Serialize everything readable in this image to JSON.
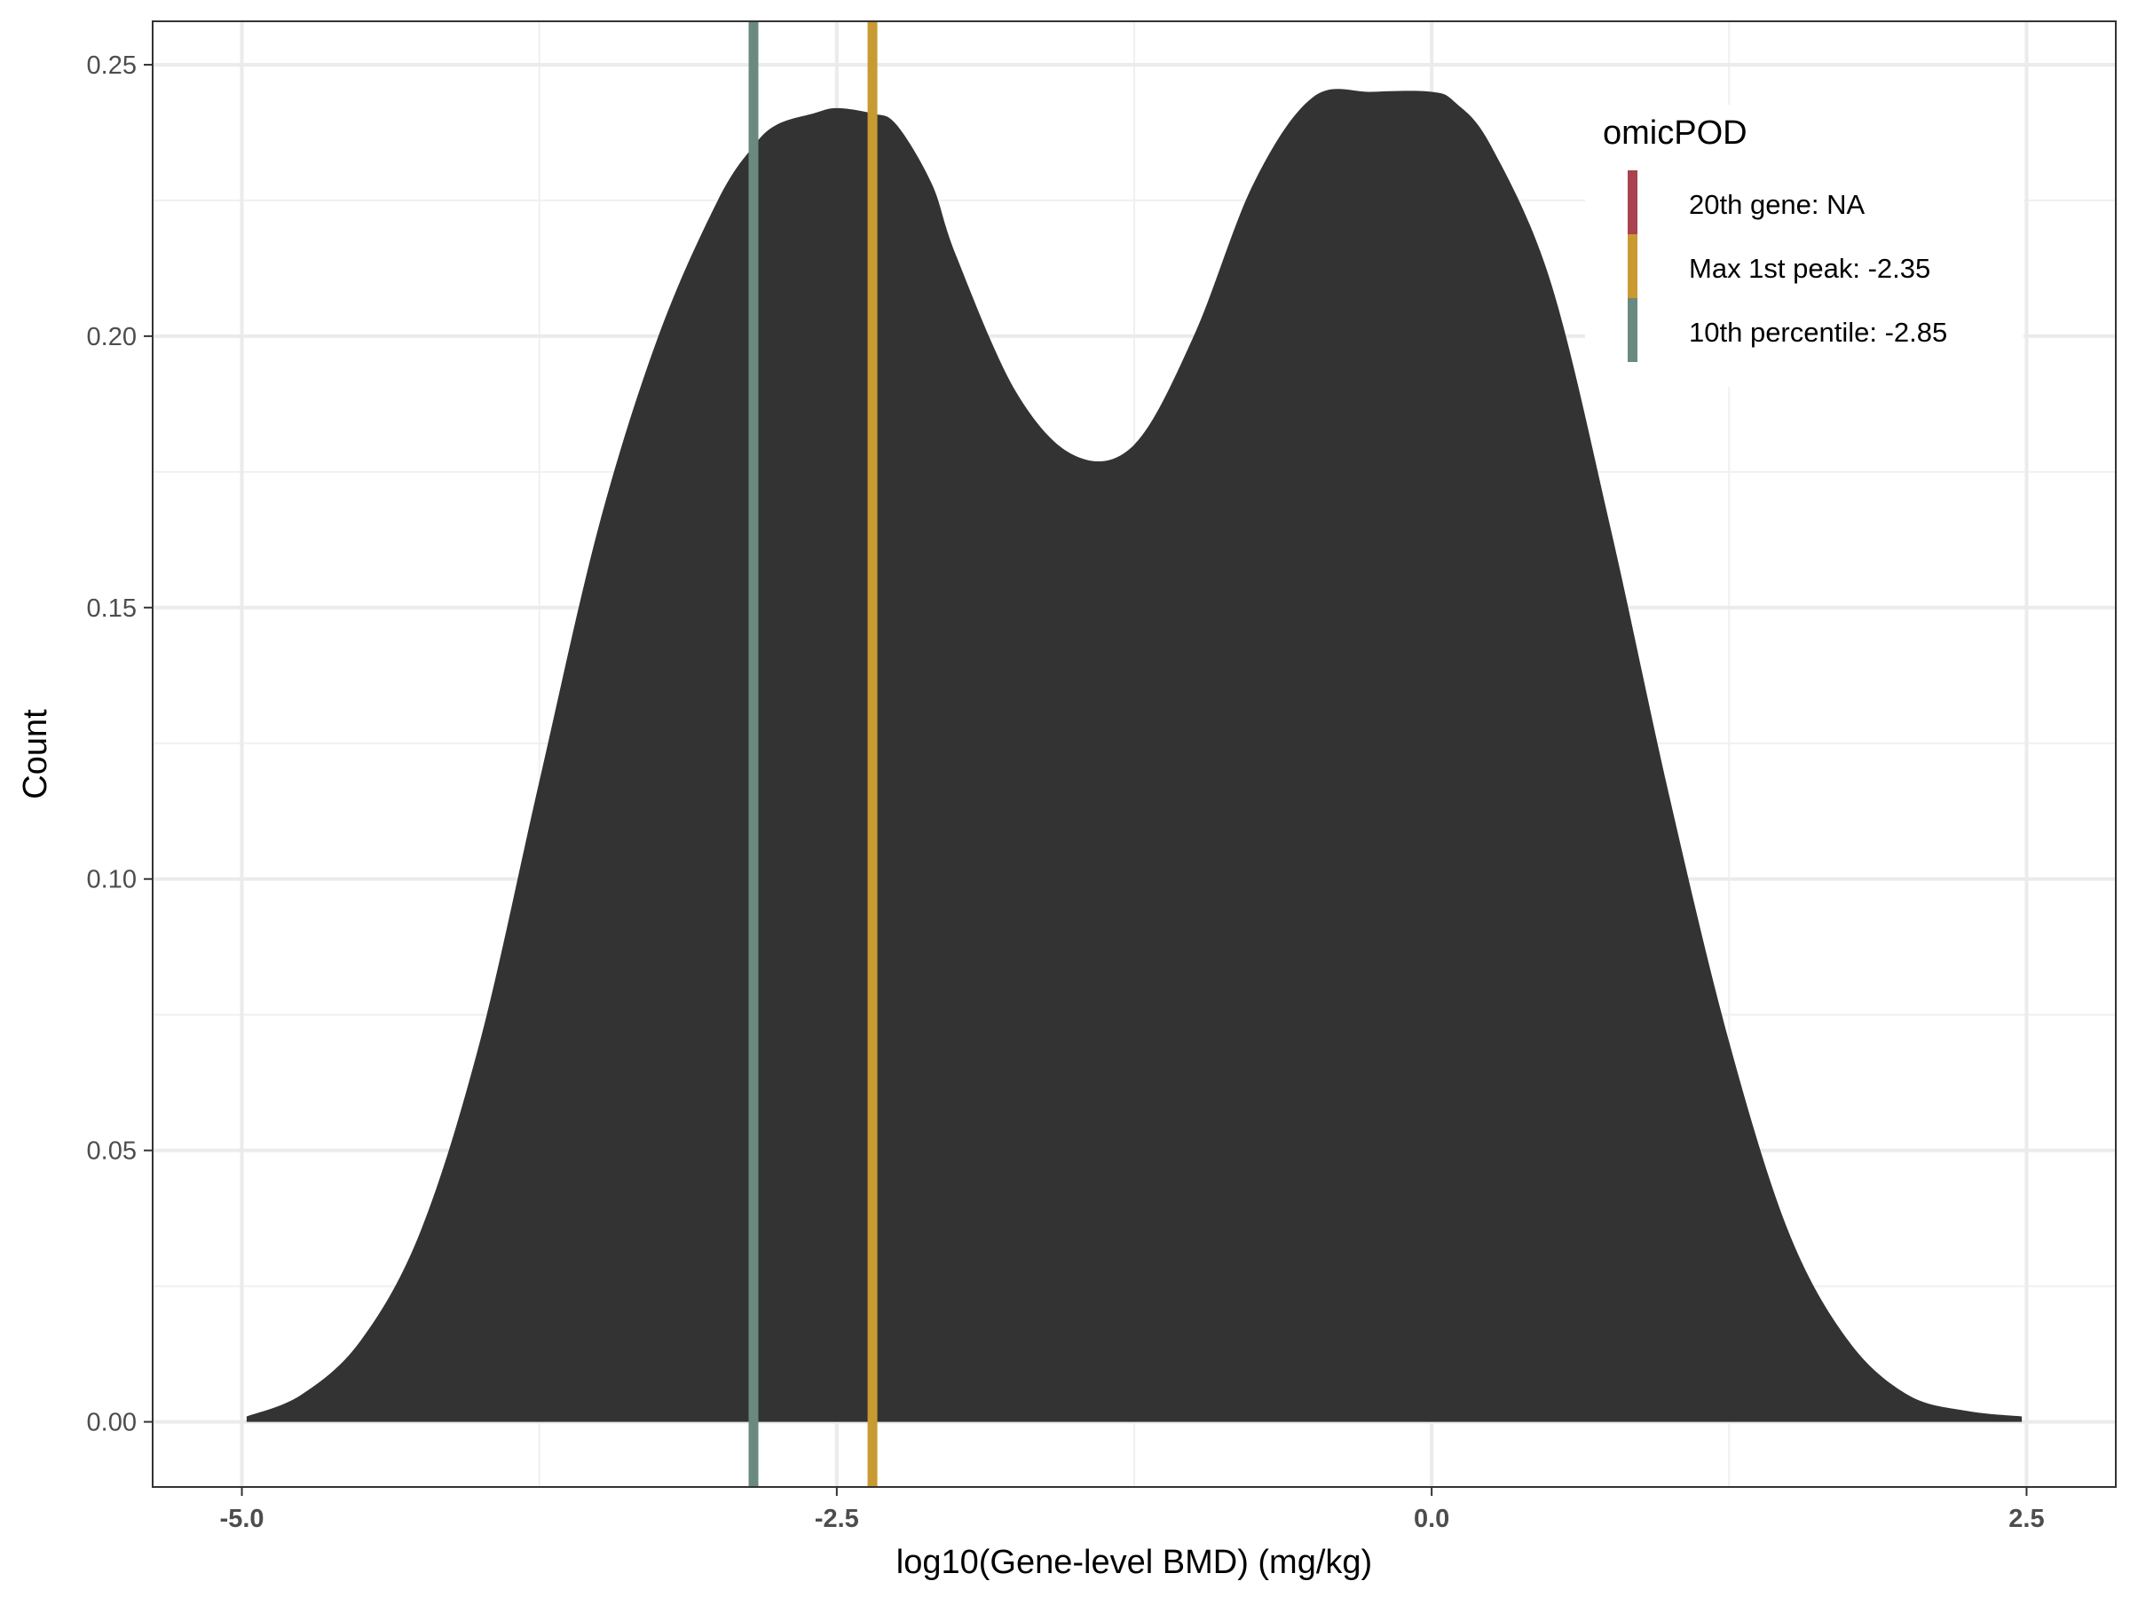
{
  "chart_data": {
    "type": "area",
    "title": "",
    "xlabel": "log10(Gene-level BMD) (mg/kg)",
    "ylabel": "Count",
    "xlim": [
      -5.375,
      2.875
    ],
    "ylim": [
      -0.012,
      0.258
    ],
    "x_ticks": [
      -5.0,
      -2.5,
      0.0,
      2.5
    ],
    "x_tick_labels": [
      "-5.0",
      "-2.5",
      "0.0",
      "2.5"
    ],
    "y_ticks": [
      0.0,
      0.05,
      0.1,
      0.15,
      0.2,
      0.25
    ],
    "y_tick_labels": [
      "0.00",
      "0.05",
      "0.10",
      "0.15",
      "0.20",
      "0.25"
    ],
    "grid": true,
    "fill_color": "#333333",
    "density": {
      "x": [
        -4.98,
        -4.75,
        -4.5,
        -4.25,
        -4.0,
        -3.75,
        -3.5,
        -3.25,
        -3.0,
        -2.85,
        -2.75,
        -2.6,
        -2.5,
        -2.35,
        -2.25,
        -2.1,
        -2.0,
        -1.75,
        -1.5,
        -1.25,
        -1.0,
        -0.75,
        -0.5,
        -0.25,
        0.0,
        0.1,
        0.25,
        0.5,
        0.75,
        1.0,
        1.25,
        1.5,
        1.75,
        2.0,
        2.25,
        2.48
      ],
      "y": [
        0.001,
        0.005,
        0.015,
        0.035,
        0.07,
        0.118,
        0.165,
        0.2,
        0.225,
        0.235,
        0.239,
        0.241,
        0.242,
        0.241,
        0.239,
        0.228,
        0.215,
        0.19,
        0.178,
        0.18,
        0.2,
        0.228,
        0.244,
        0.245,
        0.245,
        0.243,
        0.235,
        0.21,
        0.165,
        0.115,
        0.07,
        0.035,
        0.015,
        0.005,
        0.002,
        0.001
      ]
    },
    "vlines": [
      {
        "x": -2.85,
        "color": "#6b8a7f"
      },
      {
        "x": -2.35,
        "color": "#c99a32"
      }
    ],
    "legend": {
      "title": "omicPOD",
      "position": "top-right",
      "items": [
        {
          "label": "20th gene: NA",
          "color": "#a8434f"
        },
        {
          "label": "Max 1st peak: -2.35",
          "color": "#c99a32"
        },
        {
          "label": "10th percentile: -2.85",
          "color": "#6b8a7f"
        }
      ]
    }
  }
}
